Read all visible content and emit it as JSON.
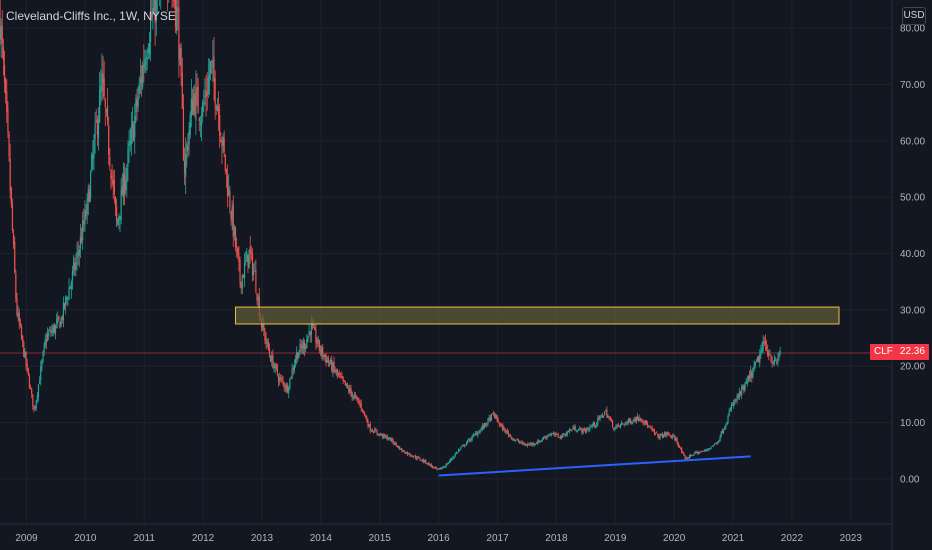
{
  "header": {
    "symbol_title": "Cleveland-Cliffs Inc., 1W, NYSE",
    "currency": "USD"
  },
  "last_price": {
    "symbol": "CLF",
    "value": "22.36"
  },
  "colors": {
    "background": "#131722",
    "up_candle": "#26a69a",
    "down_candle": "#ef5350",
    "trendline": "#2962ff",
    "zone_border": "#f0c040",
    "zone_fill": "#5f5a38",
    "last_price_tag": "#f23645"
  },
  "chart_data": {
    "type": "candlestick",
    "title": "Cleveland-Cliffs Inc., 1W, NYSE",
    "interval": "1W",
    "exchange": "NYSE",
    "currency": "USD",
    "xlim": [
      2008.55,
      2023.7
    ],
    "ylim": [
      -8,
      85
    ],
    "x_tick_labels": [
      "2009",
      "2010",
      "2011",
      "2012",
      "2013",
      "2014",
      "2015",
      "2016",
      "2017",
      "2018",
      "2019",
      "2020",
      "2021",
      "2022",
      "2023"
    ],
    "x_ticks": [
      2009,
      2010,
      2011,
      2012,
      2013,
      2014,
      2015,
      2016,
      2017,
      2018,
      2019,
      2020,
      2021,
      2022,
      2023
    ],
    "y_tick_labels": [
      "0.00",
      "10.00",
      "20.00",
      "30.00",
      "40.00",
      "50.00",
      "60.00",
      "70.00",
      "80.00"
    ],
    "y_ticks": [
      0,
      10,
      20,
      30,
      40,
      50,
      60,
      70,
      80
    ],
    "grid": true,
    "last_price": 22.36,
    "price_path": [
      [
        2008.55,
        85
      ],
      [
        2008.7,
        60
      ],
      [
        2008.85,
        30
      ],
      [
        2009.05,
        18
      ],
      [
        2009.15,
        12
      ],
      [
        2009.35,
        25
      ],
      [
        2009.6,
        28
      ],
      [
        2009.85,
        38
      ],
      [
        2010.05,
        48
      ],
      [
        2010.2,
        62
      ],
      [
        2010.3,
        70
      ],
      [
        2010.45,
        56
      ],
      [
        2010.55,
        45
      ],
      [
        2010.75,
        57
      ],
      [
        2010.95,
        70
      ],
      [
        2011.1,
        80
      ],
      [
        2011.3,
        88
      ],
      [
        2011.45,
        92
      ],
      [
        2011.6,
        80
      ],
      [
        2011.7,
        55
      ],
      [
        2011.85,
        68
      ],
      [
        2012.0,
        65
      ],
      [
        2012.15,
        73
      ],
      [
        2012.25,
        68
      ],
      [
        2012.4,
        55
      ],
      [
        2012.55,
        43
      ],
      [
        2012.65,
        35
      ],
      [
        2012.8,
        40
      ],
      [
        2012.9,
        36
      ],
      [
        2013.0,
        28
      ],
      [
        2013.15,
        22
      ],
      [
        2013.3,
        18
      ],
      [
        2013.45,
        16
      ],
      [
        2013.6,
        22
      ],
      [
        2013.75,
        24
      ],
      [
        2013.85,
        27
      ],
      [
        2014.0,
        23
      ],
      [
        2014.2,
        20
      ],
      [
        2014.4,
        17
      ],
      [
        2014.55,
        15
      ],
      [
        2014.7,
        13
      ],
      [
        2014.85,
        9
      ],
      [
        2015.0,
        8
      ],
      [
        2015.2,
        7
      ],
      [
        2015.4,
        5
      ],
      [
        2015.6,
        4
      ],
      [
        2015.8,
        3
      ],
      [
        2016.0,
        1.5
      ],
      [
        2016.15,
        2.5
      ],
      [
        2016.35,
        5
      ],
      [
        2016.6,
        7.5
      ],
      [
        2016.8,
        9.5
      ],
      [
        2016.95,
        11.5
      ],
      [
        2017.1,
        9
      ],
      [
        2017.3,
        7
      ],
      [
        2017.5,
        6
      ],
      [
        2017.7,
        6.5
      ],
      [
        2017.9,
        8
      ],
      [
        2018.1,
        7.5
      ],
      [
        2018.3,
        9
      ],
      [
        2018.5,
        8.5
      ],
      [
        2018.7,
        10
      ],
      [
        2018.85,
        12
      ],
      [
        2019.0,
        9
      ],
      [
        2019.2,
        10
      ],
      [
        2019.45,
        11
      ],
      [
        2019.6,
        9
      ],
      [
        2019.75,
        7.5
      ],
      [
        2019.9,
        8
      ],
      [
        2020.05,
        7
      ],
      [
        2020.2,
        3.5
      ],
      [
        2020.35,
        4.5
      ],
      [
        2020.55,
        5
      ],
      [
        2020.75,
        6.5
      ],
      [
        2020.9,
        10
      ],
      [
        2021.0,
        13
      ],
      [
        2021.2,
        16
      ],
      [
        2021.4,
        20
      ],
      [
        2021.55,
        24
      ],
      [
        2021.65,
        22
      ],
      [
        2021.75,
        20
      ],
      [
        2021.8,
        22.36
      ]
    ],
    "annotations": [
      {
        "type": "rectangle",
        "x": [
          2012.55,
          2022.8
        ],
        "y": [
          27.5,
          30.5
        ]
      },
      {
        "type": "trendline",
        "x": [
          2016.0,
          2021.3
        ],
        "y": [
          0.6,
          4.0
        ]
      },
      {
        "type": "horizontal-line",
        "y": 22.36
      }
    ]
  }
}
